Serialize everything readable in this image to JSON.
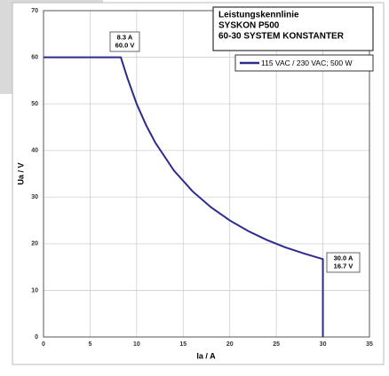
{
  "chart_data": {
    "type": "line",
    "title": [
      "Leistungskennlinie",
      "SYSKON P500",
      "60-30 SYSTEM KONSTANTER"
    ],
    "xlabel": "Ia / A",
    "ylabel": "Ua / V",
    "xlim": [
      0,
      35
    ],
    "xticks": [
      0,
      5,
      10,
      15,
      20,
      25,
      30,
      35
    ],
    "ylim": [
      0,
      70
    ],
    "yticks": [
      0,
      10,
      20,
      30,
      40,
      50,
      60,
      70
    ],
    "grid": true,
    "series": [
      {
        "name": "115 VAC / 230 VAC; 500 W",
        "color": "#2b2a8f",
        "x": [
          0,
          8.3,
          9,
          10,
          11,
          12,
          14,
          16,
          18,
          20,
          22,
          24,
          26,
          28,
          30,
          30
        ],
        "values": [
          60,
          60,
          55.6,
          50,
          45.5,
          41.7,
          35.7,
          31.25,
          27.8,
          25,
          22.7,
          20.8,
          19.2,
          17.9,
          16.7,
          0
        ]
      }
    ],
    "annotations": [
      {
        "lines": [
          "8.3 A",
          "60.0 V"
        ]
      },
      {
        "lines": [
          "30.0 A",
          "16.7 V"
        ]
      }
    ]
  }
}
